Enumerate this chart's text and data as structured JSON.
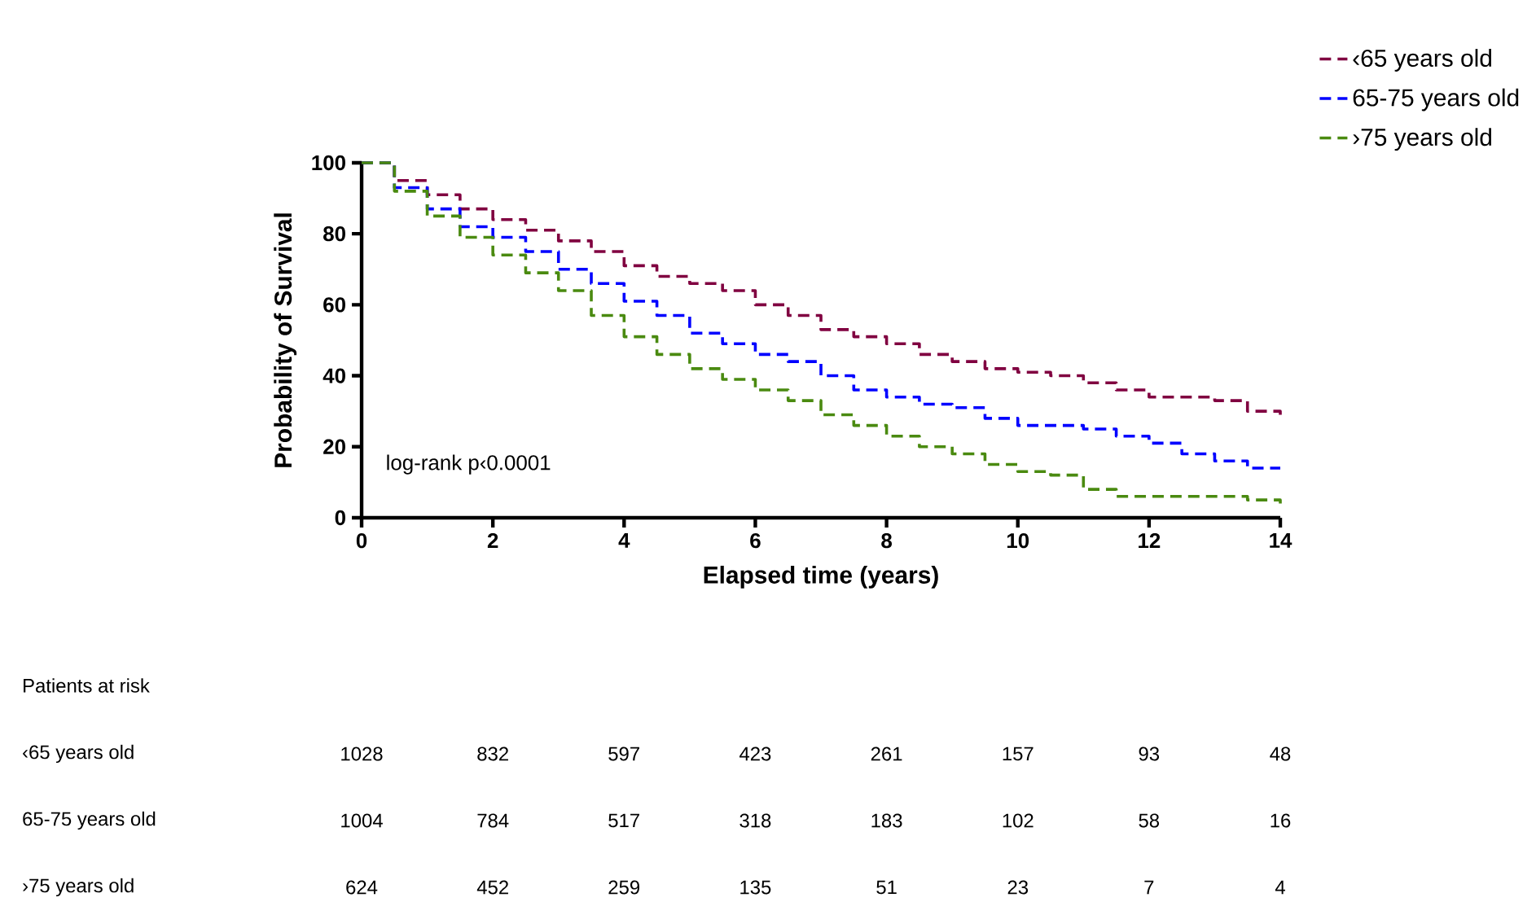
{
  "chart_data": {
    "type": "step",
    "xlabel": "Elapsed time (years)",
    "ylabel": "Probability of Survival",
    "x": [
      0,
      0.5,
      1,
      1.5,
      2,
      2.5,
      3,
      3.5,
      4,
      4.5,
      5,
      5.5,
      6,
      6.5,
      7,
      7.5,
      8,
      8.5,
      9,
      9.5,
      10,
      10.5,
      11,
      11.5,
      12,
      12.5,
      13,
      13.5,
      14
    ],
    "series": [
      {
        "name": "‹65 years old",
        "color": "#800040",
        "values": [
          100,
          95,
          91,
          87,
          84,
          81,
          78,
          75,
          71,
          68,
          66,
          64,
          60,
          57,
          53,
          51,
          49,
          46,
          44,
          42,
          41,
          40,
          38,
          36,
          34,
          34,
          33,
          30,
          29
        ]
      },
      {
        "name": "65-75 years old",
        "color": "#0000ff",
        "values": [
          100,
          93,
          87,
          82,
          79,
          75,
          70,
          66,
          61,
          57,
          52,
          49,
          46,
          44,
          40,
          36,
          34,
          32,
          31,
          28,
          26,
          26,
          25,
          23,
          21,
          18,
          16,
          14,
          14
        ]
      },
      {
        "name": "›75 years old",
        "color": "#4a8a10",
        "values": [
          100,
          92,
          85,
          79,
          74,
          69,
          64,
          57,
          51,
          46,
          42,
          39,
          36,
          33,
          29,
          26,
          23,
          20,
          18,
          15,
          13,
          12,
          8,
          6,
          6,
          6,
          6,
          5,
          4
        ]
      }
    ],
    "xlim": [
      0,
      14
    ],
    "ylim": [
      0,
      100
    ],
    "xticks": [
      0,
      2,
      4,
      6,
      8,
      10,
      12,
      14
    ],
    "yticks": [
      0,
      20,
      40,
      60,
      80,
      100
    ],
    "line_style": "dashed",
    "legend": "top right",
    "grid": false,
    "annotations": [
      "log-rank p‹0.0001",
      "Patients at risk",
      "‹65 years old",
      "1028",
      "832",
      "597",
      "423",
      "261",
      "157",
      "93",
      "48",
      "65-75 years old",
      "1004",
      "784",
      "517",
      "318",
      "183",
      "102",
      "58",
      "16",
      "›75 years old",
      "624",
      "452",
      "259",
      "135",
      "51",
      "23",
      "7",
      "4"
    ]
  }
}
